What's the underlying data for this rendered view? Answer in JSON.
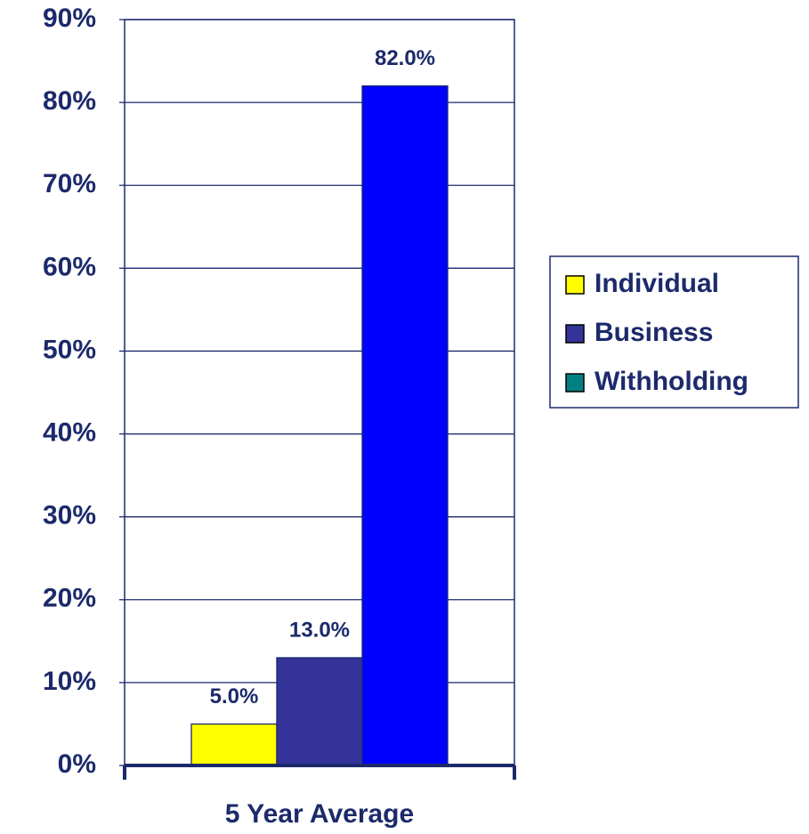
{
  "chart_data": {
    "type": "bar",
    "categories": [
      "5 Year Average"
    ],
    "series": [
      {
        "name": "Individual",
        "color": "#ffff00",
        "legend_color": "#ffff00",
        "values": [
          5.0
        ],
        "value_labels": [
          "5.0%"
        ]
      },
      {
        "name": "Business",
        "color": "#333399",
        "legend_color": "#333399",
        "values": [
          13.0
        ],
        "value_labels": [
          "13.0%"
        ]
      },
      {
        "name": "Withholding",
        "color": "#0000ff",
        "legend_color": "#008080",
        "values": [
          82.0
        ],
        "value_labels": [
          "82.0%"
        ]
      }
    ],
    "ylim": [
      0,
      90
    ],
    "yticks": [
      {
        "value": 0,
        "label": "0%"
      },
      {
        "value": 10,
        "label": "10%"
      },
      {
        "value": 20,
        "label": "20%"
      },
      {
        "value": 30,
        "label": "30%"
      },
      {
        "value": 40,
        "label": "40%"
      },
      {
        "value": 50,
        "label": "50%"
      },
      {
        "value": 60,
        "label": "60%"
      },
      {
        "value": 70,
        "label": "70%"
      },
      {
        "value": 80,
        "label": "80%"
      },
      {
        "value": 90,
        "label": "90%"
      }
    ],
    "grid": true,
    "legend": "right"
  }
}
